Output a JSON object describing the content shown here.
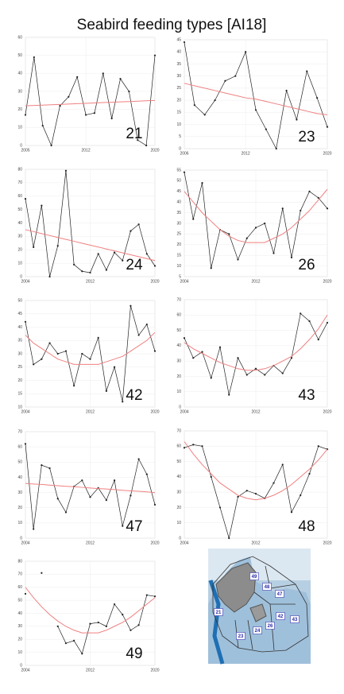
{
  "title": "Seabird feeding types [AI18]",
  "chart_data": [
    {
      "type": "line",
      "label": "21",
      "x": [
        2005,
        2006,
        2007,
        2008,
        2009,
        2010,
        2011,
        2012,
        2013,
        2014,
        2015,
        2016,
        2017,
        2018,
        2019,
        2020
      ],
      "xlim": [
        2005,
        2020
      ],
      "xticks": [
        2005,
        2012,
        2020
      ],
      "ylim": [
        0,
        60
      ],
      "yticks": [
        0,
        10,
        20,
        30,
        40,
        50,
        60
      ],
      "grid": true,
      "series": [
        {
          "color": "#222222",
          "values": [
            17,
            49,
            11,
            0,
            22,
            27,
            38,
            17,
            18,
            40,
            15,
            37,
            30,
            3,
            0,
            50
          ]
        },
        {
          "color": "#f08080",
          "values": [
            22,
            22.2,
            22.4,
            22.6,
            22.8,
            23,
            23.2,
            23.4,
            23.6,
            23.8,
            24,
            24.2,
            24.4,
            24.6,
            24.8,
            25
          ]
        }
      ]
    },
    {
      "type": "line",
      "label": "23",
      "x": [
        2006,
        2007,
        2008,
        2009,
        2010,
        2011,
        2012,
        2013,
        2014,
        2015,
        2016,
        2017,
        2018,
        2019,
        2020
      ],
      "xlim": [
        2006,
        2020
      ],
      "xticks": [
        2006,
        2012,
        2020
      ],
      "ylim": [
        0,
        45
      ],
      "yticks": [
        0,
        5,
        10,
        15,
        20,
        25,
        30,
        35,
        40,
        45
      ],
      "grid": true,
      "series": [
        {
          "color": "#222222",
          "values": [
            44,
            18,
            14,
            20,
            28,
            30,
            40,
            16,
            8,
            0,
            24,
            12,
            32,
            21,
            9
          ]
        },
        {
          "color": "#f08080",
          "values": [
            27,
            26,
            25,
            24,
            23,
            22,
            21,
            20.5,
            19.5,
            18.5,
            17.5,
            16.5,
            15.5,
            14.5,
            14
          ]
        }
      ]
    },
    {
      "type": "line",
      "label": "24",
      "x": [
        2004,
        2005,
        2006,
        2007,
        2008,
        2009,
        2010,
        2011,
        2012,
        2013,
        2014,
        2015,
        2016,
        2017,
        2018,
        2019,
        2020
      ],
      "xlim": [
        2004,
        2020
      ],
      "xticks": [
        2004,
        2012,
        2020
      ],
      "ylim": [
        0,
        80
      ],
      "yticks": [
        0,
        10,
        20,
        30,
        40,
        50,
        60,
        70,
        80
      ],
      "grid": true,
      "series": [
        {
          "color": "#222222",
          "values": [
            58,
            22,
            53,
            0,
            23,
            79,
            9,
            4,
            3,
            17,
            5,
            18,
            12,
            34,
            39,
            17,
            8
          ]
        },
        {
          "color": "#f08080",
          "values": [
            35,
            33.6,
            32.1,
            30.7,
            29.2,
            27.8,
            26.4,
            24.9,
            23.5,
            22.1,
            20.6,
            19.2,
            17.8,
            16.3,
            14.9,
            13.4,
            12
          ]
        }
      ]
    },
    {
      "type": "line",
      "label": "26",
      "x": [
        2004,
        2005,
        2006,
        2007,
        2008,
        2009,
        2010,
        2011,
        2012,
        2013,
        2014,
        2015,
        2016,
        2017,
        2018,
        2019,
        2020
      ],
      "xlim": [
        2004,
        2020
      ],
      "xticks": [
        2004,
        2012,
        2020
      ],
      "ylim": [
        5,
        55
      ],
      "yticks": [
        5,
        10,
        15,
        20,
        25,
        30,
        35,
        40,
        45,
        50,
        55
      ],
      "grid": true,
      "series": [
        {
          "color": "#222222",
          "values": [
            54,
            32,
            49,
            9,
            27,
            25,
            13,
            23,
            28,
            30,
            16,
            37,
            14,
            36,
            45,
            42,
            37
          ]
        },
        {
          "color": "#f08080",
          "values": [
            45,
            40,
            35,
            31,
            27,
            24,
            22,
            21,
            21,
            21,
            23,
            25,
            28,
            32,
            36,
            41,
            46
          ]
        }
      ]
    },
    {
      "type": "line",
      "label": "42",
      "x": [
        2004,
        2005,
        2006,
        2007,
        2008,
        2009,
        2010,
        2011,
        2012,
        2013,
        2014,
        2015,
        2016,
        2017,
        2018,
        2019,
        2020
      ],
      "xlim": [
        2004,
        2020
      ],
      "xticks": [
        2004,
        2012,
        2020
      ],
      "ylim": [
        10,
        50
      ],
      "yticks": [
        10,
        15,
        20,
        25,
        30,
        35,
        40,
        45,
        50
      ],
      "grid": true,
      "series": [
        {
          "color": "#222222",
          "values": [
            42,
            26,
            28,
            34,
            30,
            31,
            18,
            30,
            28,
            36,
            16,
            25,
            12,
            48,
            37,
            41,
            31
          ]
        },
        {
          "color": "#f08080",
          "values": [
            37,
            34,
            32,
            30,
            28,
            27,
            26,
            26,
            26,
            26,
            27,
            28,
            29,
            31,
            33,
            35,
            38
          ]
        }
      ]
    },
    {
      "type": "line",
      "label": "43",
      "x": [
        2004,
        2005,
        2006,
        2007,
        2008,
        2009,
        2010,
        2011,
        2012,
        2013,
        2014,
        2015,
        2016,
        2017,
        2018,
        2019,
        2020
      ],
      "xlim": [
        2004,
        2020
      ],
      "xticks": [
        2004,
        2012,
        2020
      ],
      "ylim": [
        0,
        70
      ],
      "yticks": [
        0,
        10,
        20,
        30,
        40,
        50,
        60,
        70
      ],
      "grid": true,
      "series": [
        {
          "color": "#222222",
          "values": [
            45,
            32,
            36,
            19,
            39,
            8,
            32,
            21,
            25,
            21,
            27,
            22,
            32,
            61,
            56,
            44,
            55
          ]
        },
        {
          "color": "#f08080",
          "values": [
            42,
            38,
            35,
            32,
            29,
            27,
            25,
            24,
            24,
            25,
            27,
            30,
            33,
            38,
            44,
            51,
            60
          ]
        }
      ]
    },
    {
      "type": "line",
      "label": "47",
      "x": [
        2004,
        2005,
        2006,
        2007,
        2008,
        2009,
        2010,
        2011,
        2012,
        2013,
        2014,
        2015,
        2016,
        2017,
        2018,
        2019,
        2020
      ],
      "xlim": [
        2004,
        2020
      ],
      "xticks": [
        2004,
        2012,
        2020
      ],
      "ylim": [
        0,
        70
      ],
      "yticks": [
        0,
        10,
        20,
        30,
        40,
        50,
        60,
        70
      ],
      "grid": true,
      "series": [
        {
          "color": "#222222",
          "values": [
            62,
            6,
            48,
            46,
            26,
            17,
            34,
            38,
            27,
            33,
            25,
            38,
            8,
            28,
            52,
            42,
            22
          ]
        },
        {
          "color": "#f08080",
          "values": [
            36,
            35.6,
            35.3,
            34.9,
            34.5,
            34.1,
            33.8,
            33.4,
            33,
            32.6,
            32.3,
            31.9,
            31.5,
            31.1,
            30.8,
            30.4,
            30
          ]
        }
      ]
    },
    {
      "type": "line",
      "label": "48",
      "x": [
        2004,
        2005,
        2006,
        2007,
        2008,
        2009,
        2010,
        2011,
        2012,
        2013,
        2014,
        2015,
        2016,
        2017,
        2018,
        2019,
        2020
      ],
      "xlim": [
        2004,
        2020
      ],
      "xticks": [
        2004,
        2012,
        2020
      ],
      "ylim": [
        0,
        70
      ],
      "yticks": [
        0,
        10,
        20,
        30,
        40,
        50,
        60,
        70
      ],
      "grid": true,
      "series": [
        {
          "color": "#222222",
          "values": [
            59,
            61,
            60,
            40,
            20,
            0,
            27,
            31,
            29,
            26,
            36,
            48,
            17,
            28,
            42,
            60,
            58
          ]
        },
        {
          "color": "#f08080",
          "values": [
            63,
            55,
            48,
            42,
            36,
            32,
            28,
            26,
            25,
            26,
            28,
            31,
            35,
            40,
            45,
            51,
            58
          ]
        }
      ]
    },
    {
      "type": "line",
      "label": "49",
      "x": [
        2004,
        2005,
        2006,
        2007,
        2008,
        2009,
        2010,
        2011,
        2012,
        2013,
        2014,
        2015,
        2016,
        2017,
        2018,
        2019,
        2020
      ],
      "xlim": [
        2004,
        2020
      ],
      "xticks": [
        2004,
        2012,
        2020
      ],
      "ylim": [
        0,
        80
      ],
      "yticks": [
        0,
        10,
        20,
        30,
        40,
        50,
        60,
        70,
        80
      ],
      "grid": true,
      "series": [
        {
          "color": "#222222",
          "values": [
            55,
            null,
            71,
            null,
            30,
            17,
            19,
            9,
            32,
            33,
            30,
            47,
            39,
            27,
            31,
            54,
            53
          ]
        },
        {
          "color": "#f08080",
          "values": [
            60,
            52,
            45,
            39,
            34,
            30,
            27,
            25,
            25,
            25,
            27,
            30,
            33,
            37,
            42,
            47,
            52
          ]
        }
      ]
    }
  ],
  "map": {
    "labels": [
      "49",
      "48",
      "47",
      "21",
      "42",
      "43",
      "26",
      "24",
      "23"
    ]
  }
}
